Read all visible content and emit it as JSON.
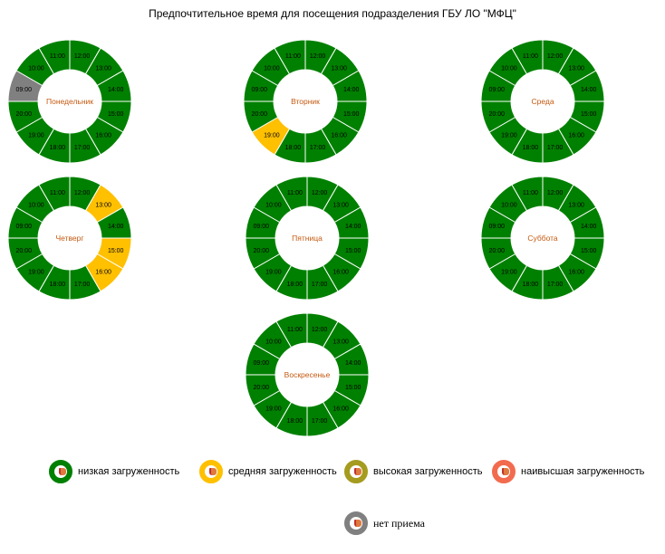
{
  "chart_data": {
    "type": "donut",
    "title": "Предпочтительное время для посещения подразделения ГБУ ЛО \"МФЦ\"",
    "slots": [
      "12:00",
      "13:00",
      "14:00",
      "15:00",
      "16:00",
      "17:00",
      "18:00",
      "19:00",
      "20:00",
      "09:00",
      "10:00",
      "11:00"
    ],
    "colors": {
      "low": "#008000",
      "medium": "#FFC000",
      "high": "#A59B1E",
      "highest": "#F26B4E",
      "closed": "#808080"
    },
    "days": [
      {
        "name": "Понедельник",
        "levels": [
          "low",
          "low",
          "low",
          "low",
          "low",
          "low",
          "low",
          "low",
          "low",
          "closed",
          "low",
          "low"
        ]
      },
      {
        "name": "Вторник",
        "levels": [
          "low",
          "low",
          "low",
          "low",
          "low",
          "low",
          "low",
          "medium",
          "low",
          "low",
          "low",
          "low"
        ]
      },
      {
        "name": "Среда",
        "levels": [
          "low",
          "low",
          "low",
          "low",
          "low",
          "low",
          "low",
          "low",
          "low",
          "low",
          "low",
          "low"
        ]
      },
      {
        "name": "Четверг",
        "levels": [
          "low",
          "medium",
          "low",
          "medium",
          "medium",
          "low",
          "low",
          "low",
          "low",
          "low",
          "low",
          "low"
        ]
      },
      {
        "name": "Пятница",
        "levels": [
          "low",
          "low",
          "low",
          "low",
          "low",
          "low",
          "low",
          "low",
          "low",
          "low",
          "low",
          "low"
        ]
      },
      {
        "name": "Суббота",
        "levels": [
          "low",
          "low",
          "low",
          "low",
          "low",
          "low",
          "low",
          "low",
          "low",
          "low",
          "low",
          "low"
        ]
      },
      {
        "name": "Воскресенье",
        "levels": [
          "low",
          "low",
          "low",
          "low",
          "low",
          "low",
          "low",
          "low",
          "low",
          "low",
          "low",
          "low"
        ]
      }
    ],
    "legend": [
      {
        "key": "low",
        "label": "низкая загруженность"
      },
      {
        "key": "medium",
        "label": "средняя загруженность"
      },
      {
        "key": "high",
        "label": "высокая загруженность"
      },
      {
        "key": "highest",
        "label": "наивысшая загруженность"
      },
      {
        "key": "closed",
        "label": "нет приема"
      }
    ]
  }
}
